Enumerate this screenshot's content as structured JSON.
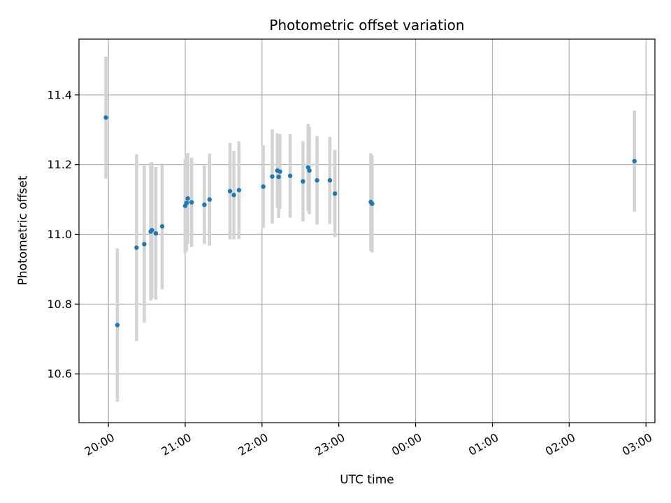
{
  "chart_data": {
    "type": "scatter",
    "title": "Photometric offset variation",
    "xlabel": "UTC time",
    "ylabel": "Photometric offset",
    "x_axis": {
      "kind": "time",
      "range": [
        "19:37",
        "03:07"
      ],
      "ticks": [
        "20:00",
        "21:00",
        "22:00",
        "23:00",
        "00:00",
        "01:00",
        "02:00",
        "03:00"
      ]
    },
    "y_axis": {
      "range": [
        10.46,
        11.56
      ],
      "ticks": [
        "10.6",
        "10.8",
        "11.0",
        "11.2",
        "11.4"
      ]
    },
    "grid": true,
    "colors": {
      "marker": "#1f77b4",
      "errorbar": "#d3d3d3",
      "grid": "#b0b0b0"
    },
    "series": [
      {
        "points": [
          {
            "x": "19:58",
            "y": 11.335,
            "err": 0.175
          },
          {
            "x": "20:07",
            "y": 10.74,
            "err": 0.22
          },
          {
            "x": "20:22",
            "y": 10.962,
            "err": 0.268
          },
          {
            "x": "20:28",
            "y": 10.972,
            "err": 0.225
          },
          {
            "x": "20:33",
            "y": 11.008,
            "err": 0.198
          },
          {
            "x": "20:34",
            "y": 11.012,
            "err": 0.195
          },
          {
            "x": "20:37",
            "y": 11.003,
            "err": 0.19
          },
          {
            "x": "20:42",
            "y": 11.023,
            "err": 0.18
          },
          {
            "x": "21:00",
            "y": 11.082,
            "err": 0.135
          },
          {
            "x": "21:01",
            "y": 11.09,
            "err": 0.138
          },
          {
            "x": "21:02",
            "y": 11.103,
            "err": 0.13
          },
          {
            "x": "21:05",
            "y": 11.092,
            "err": 0.128
          },
          {
            "x": "21:15",
            "y": 11.085,
            "err": 0.112
          },
          {
            "x": "21:19",
            "y": 11.1,
            "err": 0.132
          },
          {
            "x": "21:35",
            "y": 11.124,
            "err": 0.138
          },
          {
            "x": "21:38",
            "y": 11.113,
            "err": 0.127
          },
          {
            "x": "21:42",
            "y": 11.127,
            "err": 0.14
          },
          {
            "x": "22:01",
            "y": 11.137,
            "err": 0.118
          },
          {
            "x": "22:08",
            "y": 11.166,
            "err": 0.135
          },
          {
            "x": "22:12",
            "y": 11.183,
            "err": 0.107
          },
          {
            "x": "22:13",
            "y": 11.165,
            "err": 0.118
          },
          {
            "x": "22:14",
            "y": 11.18,
            "err": 0.107
          },
          {
            "x": "22:22",
            "y": 11.168,
            "err": 0.12
          },
          {
            "x": "22:32",
            "y": 11.152,
            "err": 0.115
          },
          {
            "x": "22:36",
            "y": 11.192,
            "err": 0.125
          },
          {
            "x": "22:37",
            "y": 11.183,
            "err": 0.125
          },
          {
            "x": "22:43",
            "y": 11.155,
            "err": 0.127
          },
          {
            "x": "22:53",
            "y": 11.155,
            "err": 0.125
          },
          {
            "x": "22:57",
            "y": 11.117,
            "err": 0.125
          },
          {
            "x": "23:25",
            "y": 11.093,
            "err": 0.14
          },
          {
            "x": "23:26",
            "y": 11.088,
            "err": 0.14
          },
          {
            "x": "02:51",
            "y": 11.21,
            "err": 0.145
          }
        ]
      }
    ]
  }
}
